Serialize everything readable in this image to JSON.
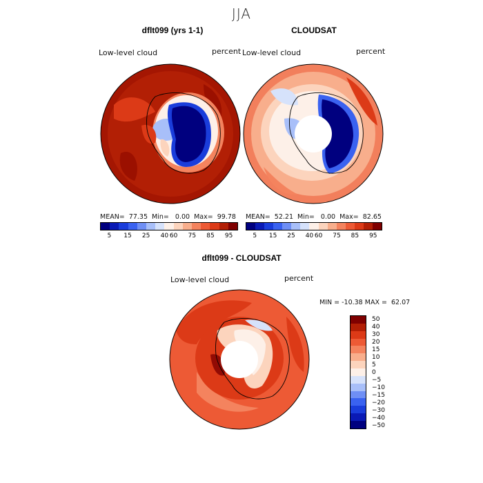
{
  "page": {
    "season": "JJA"
  },
  "panels": {
    "model": {
      "title": "dflt099 (yrs 1-1)",
      "field_label": "Low-level cloud",
      "unit_label": "percent",
      "stats": "MEAN=  77.35  Min=   0.00  Max=  99.78"
    },
    "obs": {
      "title": "CLOUDSAT",
      "field_label": "Low-level cloud",
      "unit_label": "percent",
      "stats": "MEAN=  52.21  Min=   0.00  Max=  82.65"
    },
    "diff": {
      "title": "dflt099 - CLOUDSAT",
      "field_label": "Low-level cloud",
      "unit_label": "percent",
      "minmax": "MIN = -10.38 MAX =  62.07"
    }
  },
  "colorbar_abs": {
    "tick_labels": [
      "5",
      "15",
      "25",
      "40",
      "60",
      "75",
      "85",
      "95"
    ],
    "colors": [
      "#00007f",
      "#0a1ab5",
      "#1a3ddb",
      "#3a62f0",
      "#6f8ff5",
      "#a8bff9",
      "#d6e2fb",
      "#fdf0e8",
      "#fcd4bd",
      "#f8ae8c",
      "#f4835e",
      "#ed5a35",
      "#dc3a17",
      "#b21f05",
      "#7f0000"
    ]
  },
  "colorbar_diff": {
    "tick_labels": [
      "50",
      "40",
      "30",
      "20",
      "15",
      "10",
      "5",
      "0",
      "−5",
      "−10",
      "−15",
      "−20",
      "−30",
      "−40",
      "−50"
    ],
    "colors": [
      "#7f0000",
      "#b21f05",
      "#dc3a17",
      "#ed5a35",
      "#f4835e",
      "#f8ae8c",
      "#fcd4bd",
      "#fdf0e8",
      "#d6e2fb",
      "#a8bff9",
      "#6f8ff5",
      "#3a62f0",
      "#1a3ddb",
      "#0a1ab5",
      "#00007f"
    ]
  }
}
